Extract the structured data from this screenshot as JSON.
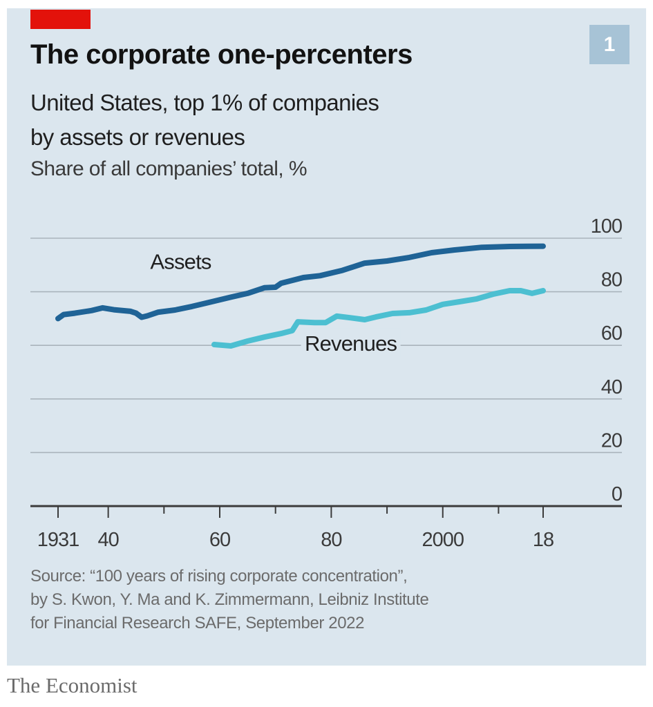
{
  "header": {
    "badge": "1",
    "title": "The corporate one-percenters",
    "subtitle_lines": [
      "United States, top 1% of companies",
      "by assets or revenues"
    ],
    "unit_label": "Share of all companies’ total, %"
  },
  "footer": {
    "source_lines": [
      "Source: “100 years of rising corporate concentration”,",
      "by S. Kwon, Y. Ma and K. Zimmermann, Leibniz Institute",
      "for Financial Research SAFE, September 2022"
    ],
    "brand": "The Economist"
  },
  "colors": {
    "brand_red": "#e3120b",
    "assets": "#1f6396",
    "revenues": "#4cbfd1",
    "background": "#dbe6ee"
  },
  "chart_data": {
    "type": "line",
    "title": "The corporate one-percenters",
    "subtitle": "United States, top 1% of companies by assets or revenues",
    "ylabel": "Share of all companies’ total, %",
    "xlabel": "",
    "xlim": [
      1931,
      2018
    ],
    "ylim": [
      0,
      100
    ],
    "grid": true,
    "y_axis_side": "right",
    "x_ticks": [
      1931,
      1940,
      1950,
      1960,
      1970,
      1980,
      1990,
      2000,
      2010,
      2018
    ],
    "x_tick_labels": [
      {
        "year": 1931,
        "label": "1931"
      },
      {
        "year": 1940,
        "label": "40"
      },
      {
        "year": 1960,
        "label": "60"
      },
      {
        "year": 1980,
        "label": "80"
      },
      {
        "year": 2000,
        "label": "2000"
      },
      {
        "year": 2018,
        "label": "18"
      }
    ],
    "y_ticks": [
      0,
      20,
      40,
      60,
      80,
      100
    ],
    "y_tick_labels": [
      "0",
      "20",
      "40",
      "60",
      "80",
      "100"
    ],
    "series": [
      {
        "name": "Assets",
        "label": "Assets",
        "label_anchor": {
          "x": 1953,
          "y": 88.5
        },
        "color": "#1f6396",
        "x": [
          1931,
          1932,
          1934,
          1937,
          1939,
          1941,
          1944,
          1945,
          1946,
          1947,
          1949,
          1952,
          1955,
          1958,
          1962,
          1965,
          1968,
          1970,
          1971,
          1975,
          1978,
          1982,
          1986,
          1990,
          1994,
          1998,
          2002,
          2007,
          2012,
          2018
        ],
        "values": [
          70,
          71.5,
          72,
          73,
          74,
          73.3,
          72.7,
          72,
          70.5,
          71,
          72.4,
          73.2,
          74.5,
          76,
          78,
          79.4,
          81.5,
          81.7,
          83.2,
          85.3,
          86,
          88,
          90.7,
          91.5,
          92.8,
          94.6,
          95.6,
          96.6,
          96.9,
          97
        ]
      },
      {
        "name": "Revenues",
        "label": "Revenues",
        "label_anchor": {
          "x": 1983.5,
          "y": 58
        },
        "color": "#4cbfd1",
        "x": [
          1959,
          1962,
          1965,
          1968,
          1971,
          1973,
          1974,
          1977,
          1979,
          1981,
          1983,
          1986,
          1988,
          1991,
          1994,
          1997,
          2000,
          2003,
          2006,
          2009,
          2012,
          2014,
          2016,
          2018
        ],
        "values": [
          60.3,
          59.8,
          61.6,
          63.1,
          64.4,
          65.5,
          68.8,
          68.5,
          68.5,
          70.9,
          70.4,
          69.6,
          70.6,
          71.9,
          72.2,
          73.2,
          75.3,
          76.3,
          77.3,
          79.1,
          80.4,
          80.4,
          79.4,
          80.4
        ]
      }
    ],
    "legend": "inline labels"
  }
}
